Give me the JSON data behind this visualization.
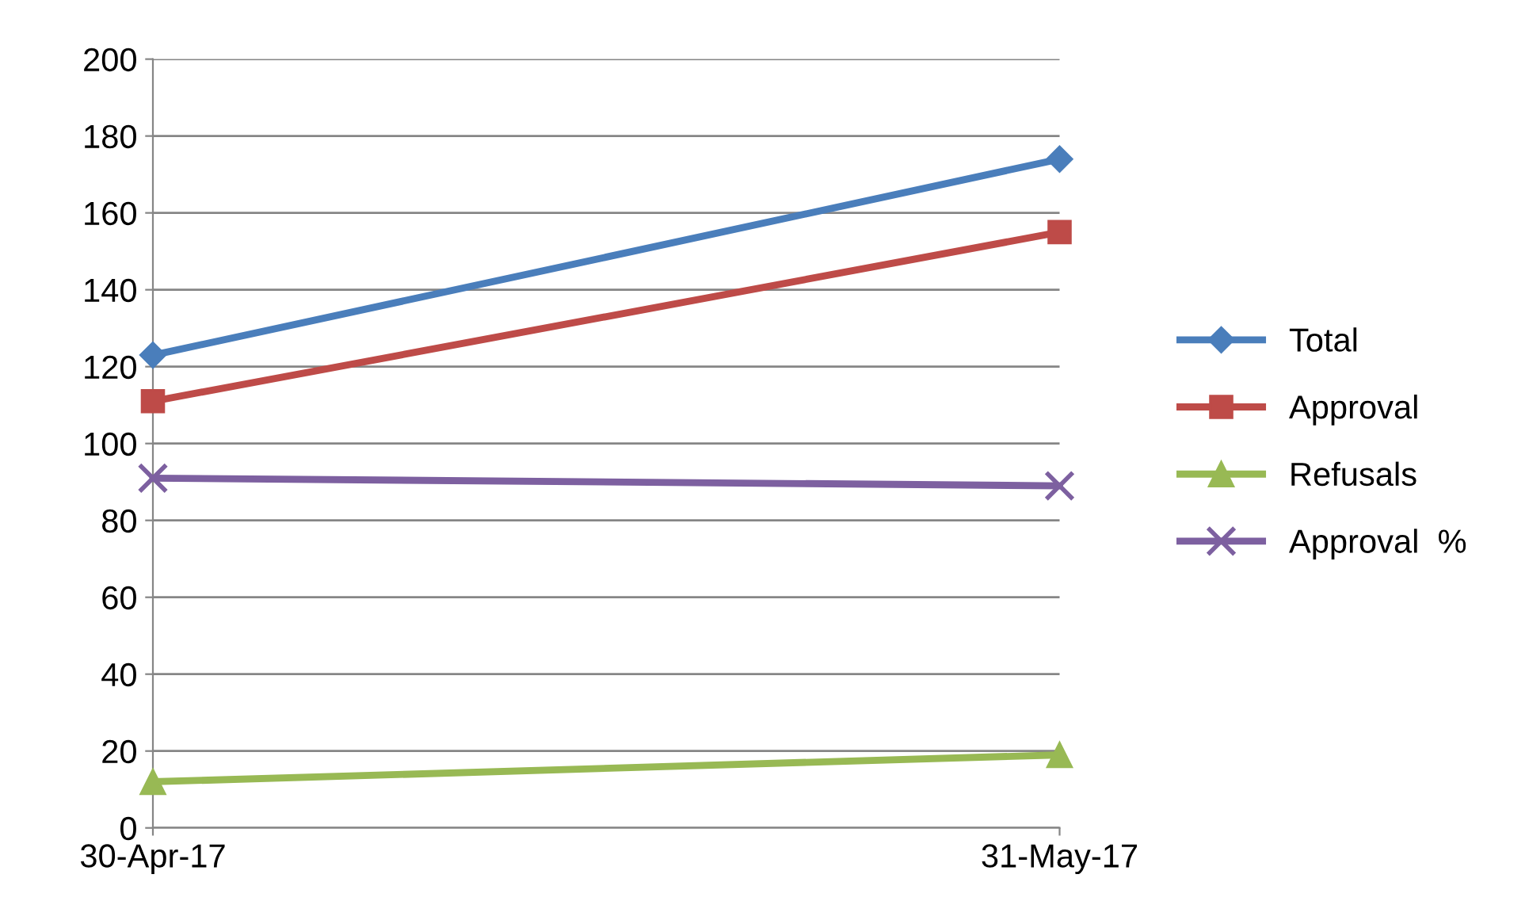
{
  "chart_data": {
    "type": "line",
    "x": [
      "2017-04-30",
      "2017-05-31"
    ],
    "series": [
      {
        "name": "Total",
        "color": "#4a7ebb",
        "marker": "diamond",
        "values": [
          123,
          174
        ]
      },
      {
        "name": "Approval",
        "color": "#be4b48",
        "marker": "square",
        "values": [
          111,
          155
        ]
      },
      {
        "name": "Refusals",
        "color": "#98b954",
        "marker": "triangle",
        "values": [
          12,
          19
        ]
      },
      {
        "name": "Approval  %",
        "color": "#7d60a0",
        "marker": "cross",
        "values": [
          91,
          89
        ]
      }
    ],
    "xlim": [
      "2017-04-30",
      "2017-05-31"
    ],
    "xticks": [
      {
        "value": "2017-04-30",
        "label": "30-Apr-17"
      },
      {
        "value": "2017-05-31",
        "label": "31-May-17"
      }
    ],
    "ylim": [
      0,
      200
    ],
    "yticks": [
      0,
      20,
      40,
      60,
      80,
      100,
      120,
      140,
      160,
      180,
      200
    ],
    "grid": "y",
    "legend": "right"
  }
}
